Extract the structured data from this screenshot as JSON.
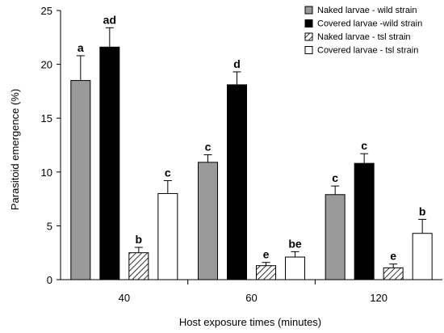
{
  "chart_data": {
    "type": "bar",
    "title": "",
    "xlabel": "Host exposure times (minutes)",
    "ylabel": "Parasitoid emergence (%)",
    "ylim": [
      0,
      25
    ],
    "yticks": [
      0,
      5,
      10,
      15,
      20,
      25
    ],
    "categories": [
      "40",
      "60",
      "120"
    ],
    "legend_position": "top-right",
    "grid": false,
    "series": [
      {
        "name": "Naked larvae - wild strain",
        "fill": "gray",
        "color": "#9a9a9a",
        "values": [
          18.5,
          10.9,
          7.9
        ],
        "errors": [
          2.3,
          0.7,
          0.8
        ],
        "labels": [
          "a",
          "c",
          "c"
        ]
      },
      {
        "name": "Covered larvae -wild strain",
        "fill": "black",
        "color": "#000000",
        "values": [
          21.6,
          18.1,
          10.8
        ],
        "errors": [
          1.8,
          1.2,
          0.9
        ],
        "labels": [
          "ad",
          "d",
          "c"
        ]
      },
      {
        "name": "Naked larvae - tsl strain",
        "fill": "hatched",
        "color": "#ffffff",
        "values": [
          2.5,
          1.3,
          1.1
        ],
        "errors": [
          0.5,
          0.3,
          0.35
        ],
        "labels": [
          "b",
          "e",
          "e"
        ]
      },
      {
        "name": "Covered larvae - tsl strain",
        "fill": "white",
        "color": "#ffffff",
        "values": [
          8.0,
          2.1,
          4.3
        ],
        "errors": [
          1.2,
          0.5,
          1.3
        ],
        "labels": [
          "c",
          "be",
          "b"
        ]
      }
    ]
  }
}
